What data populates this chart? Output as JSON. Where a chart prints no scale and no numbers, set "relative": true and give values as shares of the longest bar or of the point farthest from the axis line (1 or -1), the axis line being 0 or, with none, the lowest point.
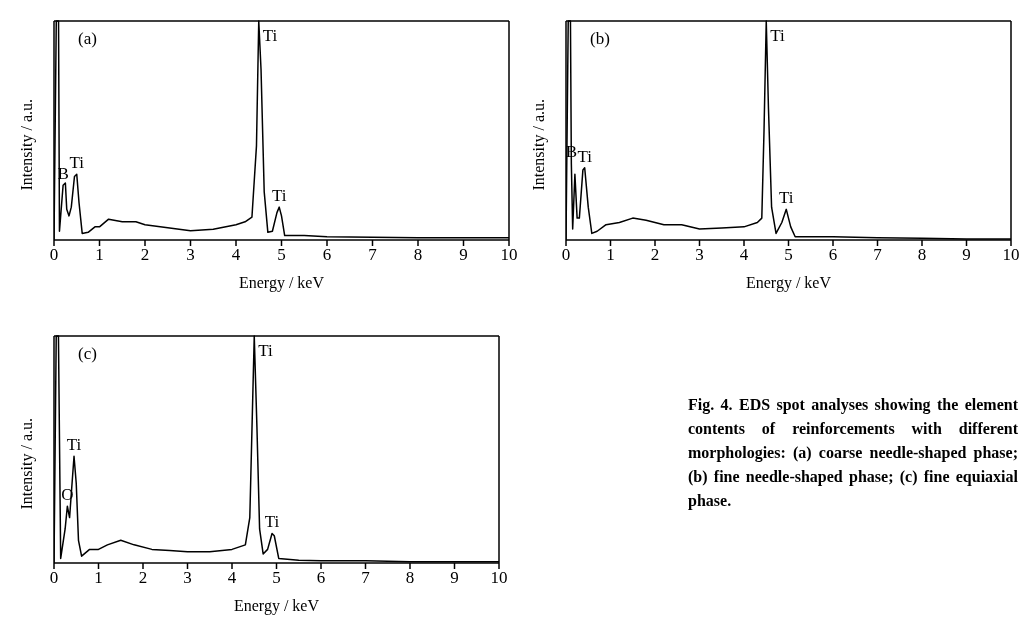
{
  "chart_data": [
    {
      "type": "line",
      "relative": true,
      "xlabel": "Energy / keV",
      "ylabel": "Intensity / a.u.",
      "xlim": [
        0,
        10
      ],
      "xticks": [
        0,
        1,
        2,
        3,
        4,
        5,
        6,
        7,
        8,
        9,
        10
      ],
      "series": [
        {
          "color": "#000000",
          "x": [
            0,
            0.05,
            0.1,
            0.12,
            0.2,
            0.25,
            0.28,
            0.33,
            0.38,
            0.45,
            0.5,
            0.55,
            0.62,
            0.75,
            0.9,
            1.0,
            1.2,
            1.5,
            1.8,
            2.0,
            2.5,
            3.0,
            3.5,
            4.0,
            4.2,
            4.35,
            4.45,
            4.5,
            4.55,
            4.62,
            4.7,
            4.8,
            4.9,
            4.95,
            5.0,
            5.07,
            5.5,
            6,
            7,
            8,
            9,
            10
          ],
          "values": [
            0,
            1,
            1,
            0.04,
            0.25,
            0.26,
            0.14,
            0.11,
            0.15,
            0.29,
            0.3,
            0.17,
            0.03,
            0.035,
            0.06,
            0.06,
            0.095,
            0.083,
            0.083,
            0.07,
            0.056,
            0.042,
            0.049,
            0.07,
            0.083,
            0.104,
            0.43,
            1,
            0.78,
            0.22,
            0.035,
            0.04,
            0.125,
            0.15,
            0.11,
            0.02,
            0.02,
            0.015,
            0.012,
            0.01,
            0.01,
            0.01
          ]
        }
      ],
      "annotations": [
        "(a)",
        {
          "text": "Ti",
          "x": 4.5,
          "y": 1
        },
        {
          "text": "B",
          "x": 0.2,
          "y": 0.25
        },
        {
          "text": "Ti",
          "x": 0.5,
          "y": 0.3
        },
        {
          "text": "Ti",
          "x": 4.95,
          "y": 0.15
        }
      ]
    },
    {
      "type": "line",
      "relative": true,
      "xlabel": "Energy / keV",
      "ylabel": "Intensity / a.u.",
      "xlim": [
        0,
        10
      ],
      "xticks": [
        0,
        1,
        2,
        3,
        4,
        5,
        6,
        7,
        8,
        9,
        10
      ],
      "series": [
        {
          "color": "#000000",
          "x": [
            0,
            0.05,
            0.1,
            0.12,
            0.15,
            0.2,
            0.25,
            0.3,
            0.38,
            0.42,
            0.5,
            0.58,
            0.7,
            0.9,
            1.2,
            1.5,
            1.8,
            2.2,
            2.6,
            3.0,
            3.5,
            4.0,
            4.3,
            4.4,
            4.45,
            4.5,
            4.55,
            4.62,
            4.72,
            4.85,
            4.95,
            5.05,
            5.15,
            6,
            7,
            8,
            9,
            10
          ],
          "values": [
            0,
            1,
            1,
            0.35,
            0.05,
            0.3,
            0.1,
            0.1,
            0.32,
            0.33,
            0.15,
            0.03,
            0.04,
            0.07,
            0.08,
            0.1,
            0.09,
            0.07,
            0.07,
            0.05,
            0.055,
            0.06,
            0.08,
            0.1,
            0.5,
            1,
            0.6,
            0.15,
            0.03,
            0.08,
            0.14,
            0.06,
            0.015,
            0.015,
            0.01,
            0.008,
            0.005,
            0.005
          ]
        }
      ],
      "annotations": [
        "(b)",
        {
          "text": "Ti",
          "x": 4.5,
          "y": 1
        },
        {
          "text": "B",
          "x": 0.12,
          "y": 0.35
        },
        {
          "text": "Ti",
          "x": 0.42,
          "y": 0.33
        },
        {
          "text": "Ti",
          "x": 4.95,
          "y": 0.14
        }
      ]
    },
    {
      "type": "line",
      "relative": true,
      "xlabel": "Energy / keV",
      "ylabel": "Intensity / a.u.",
      "xlim": [
        0,
        10
      ],
      "xticks": [
        0,
        1,
        2,
        3,
        4,
        5,
        6,
        7,
        8,
        9,
        10
      ],
      "series": [
        {
          "color": "#000000",
          "x": [
            0,
            0.05,
            0.1,
            0.15,
            0.25,
            0.3,
            0.35,
            0.45,
            0.5,
            0.55,
            0.62,
            0.8,
            1.0,
            1.2,
            1.5,
            1.8,
            2.2,
            2.6,
            3.0,
            3.5,
            4.0,
            4.3,
            4.4,
            4.5,
            4.56,
            4.62,
            4.7,
            4.8,
            4.9,
            4.95,
            5.05,
            5.5,
            6,
            7,
            8,
            9,
            10
          ],
          "values": [
            0,
            1,
            1,
            0.02,
            0.15,
            0.25,
            0.2,
            0.47,
            0.35,
            0.1,
            0.03,
            0.06,
            0.06,
            0.08,
            0.1,
            0.08,
            0.06,
            0.055,
            0.05,
            0.05,
            0.06,
            0.08,
            0.2,
            1,
            0.6,
            0.15,
            0.04,
            0.06,
            0.13,
            0.12,
            0.02,
            0.012,
            0.01,
            0.01,
            0.005,
            0.005,
            0.005
          ]
        }
      ],
      "annotations": [
        "(c)",
        {
          "text": "Ti",
          "x": 4.5,
          "y": 1
        },
        {
          "text": "O",
          "x": 0.3,
          "y": 0.25
        },
        {
          "text": "Ti",
          "x": 0.45,
          "y": 0.47
        },
        {
          "text": "Ti",
          "x": 4.9,
          "y": 0.13
        }
      ]
    },
    {
      "type": "other",
      "annotations": [
        "Fig. 4.  EDS spot analyses showing the element contents of reinforcements with different morphologies: (a) coarse needle-shaped phase; (b) fine needle-shaped phase; (c) fine equiaxial phase."
      ]
    }
  ]
}
